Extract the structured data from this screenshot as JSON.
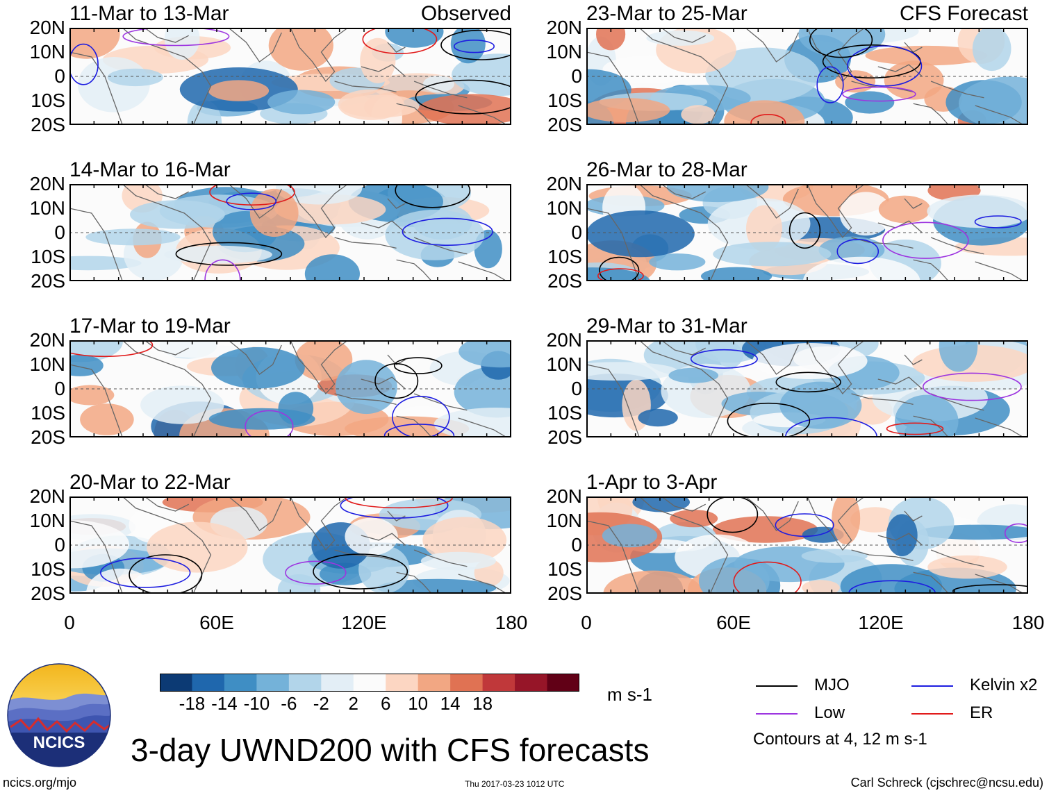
{
  "chart_data": {
    "type": "heatmap",
    "title": "3-day UWND200 with CFS forecasts",
    "variable": "UWND200",
    "units": "m s-1",
    "x": {
      "ticks": [
        "0",
        "60E",
        "120E",
        "180"
      ],
      "range": [
        0,
        180
      ]
    },
    "y": {
      "ticks": [
        "20N",
        "10N",
        "0",
        "10S",
        "20S"
      ],
      "range": [
        -20,
        20
      ]
    },
    "colorbar": {
      "levels": [
        "-18",
        "-14",
        "-10",
        "-6",
        "-2",
        "2",
        "6",
        "10",
        "14",
        "18"
      ],
      "colors": [
        "#0c3a74",
        "#1f67ad",
        "#3f8ec4",
        "#74b2d9",
        "#b2d5ea",
        "#e3eef6",
        "#fbfbfb",
        "#fcd6c2",
        "#f2a783",
        "#e07253",
        "#c0383a",
        "#961528",
        "#610016"
      ]
    },
    "legend": [
      {
        "label": "MJO",
        "color": "#000000"
      },
      {
        "label": "Kelvin x2",
        "color": "#1d1de0"
      },
      {
        "label": "Low",
        "color": "#9d35e0"
      },
      {
        "label": "ER",
        "color": "#e11b1b"
      }
    ],
    "contour_note": "Contours at 4, 12 m s-1",
    "columns": [
      {
        "label": "Observed"
      },
      {
        "label": "CFS Forecast"
      }
    ],
    "panels": [
      {
        "title": "11-Mar to 13-Mar",
        "source": "Observed"
      },
      {
        "title": "14-Mar to 16-Mar",
        "source": "Observed"
      },
      {
        "title": "17-Mar to 19-Mar",
        "source": "Observed"
      },
      {
        "title": "20-Mar to 22-Mar",
        "source": "Observed"
      },
      {
        "title": "23-Mar to 25-Mar",
        "source": "CFS Forecast"
      },
      {
        "title": "26-Mar to 28-Mar",
        "source": "CFS Forecast"
      },
      {
        "title": "29-Mar to 31-Mar",
        "source": "CFS Forecast"
      },
      {
        "title": "1-Apr to 3-Apr",
        "source": "CFS Forecast"
      }
    ]
  },
  "logo": {
    "text": "NCICS"
  },
  "footer": {
    "site": "ncics.org/mjo",
    "timestamp": "Thu 2017-03-23 1012 UTC",
    "author": "Carl Schreck (cjschrec@ncsu.edu)"
  }
}
